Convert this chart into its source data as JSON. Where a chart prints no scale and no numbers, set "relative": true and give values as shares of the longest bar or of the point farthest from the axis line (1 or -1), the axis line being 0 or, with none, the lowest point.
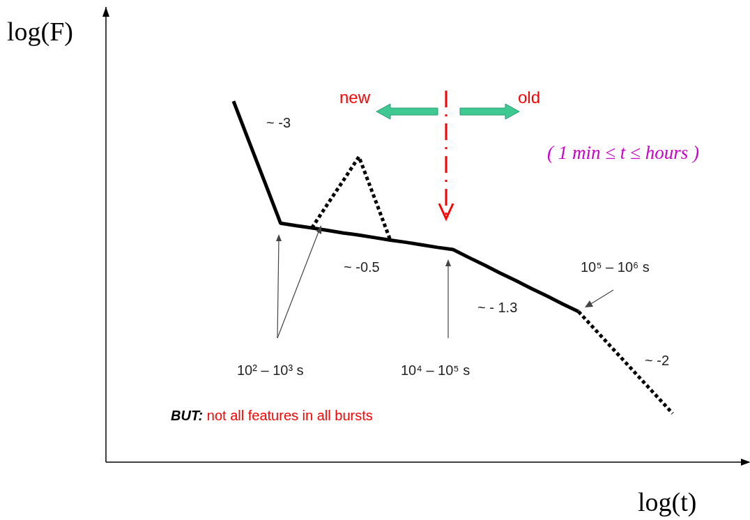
{
  "chart_data": {
    "type": "line",
    "relative": true,
    "xlabel": "log(t)",
    "categories": [
      null,
      null,
      null,
      null,
      null,
      null,
      null,
      null,
      null,
      null,
      null,
      null,
      null,
      null,
      null,
      null,
      null,
      null,
      null,
      null,
      null,
      null,
      null,
      null,
      null,
      null,
      null,
      null,
      null
    ],
    "series": [
      {
        "color": "#000000",
        "line_style": "solid",
        "values": [
          1,
          0.887,
          0.775,
          0.662,
          0.655,
          0.649,
          0.642,
          0.635,
          0.629,
          0.622,
          0.615,
          0.609,
          0.602,
          0.595,
          0.589,
          0.567,
          0.546,
          0.524,
          0.503,
          0.481,
          0.46,
          0.438,
          0.417,
          null,
          null,
          null,
          null,
          null,
          null
        ]
      },
      {
        "color": "#000000",
        "line_style": "dotted",
        "values": [
          null,
          null,
          null,
          null,
          null,
          0.649,
          0.715,
          0.78,
          0.846,
          0.731,
          0.615,
          null,
          null,
          null,
          null,
          null,
          null,
          null,
          null,
          null,
          null,
          null,
          null,
          null,
          null,
          null,
          null,
          null,
          null
        ]
      },
      {
        "color": "#000000",
        "line_style": "dotted",
        "values": [
          null,
          null,
          null,
          null,
          null,
          null,
          null,
          null,
          null,
          null,
          null,
          null,
          null,
          null,
          null,
          null,
          null,
          null,
          null,
          null,
          null,
          null,
          0.417,
          0.37,
          0.323,
          0.276,
          0.229,
          0.182,
          0.135
        ]
      }
    ],
    "annotations": [
      "~ -3",
      "~ -0.5",
      "~ - 1.3",
      "~ -2",
      "10² – 10³ s",
      "10⁴ – 10⁵ s",
      "10⁵ – 10⁶ s",
      "new",
      "old",
      "( 1 min ≤ t ≤ hours )",
      "BUT: not all features in all bursts",
      "log(F)"
    ]
  }
}
